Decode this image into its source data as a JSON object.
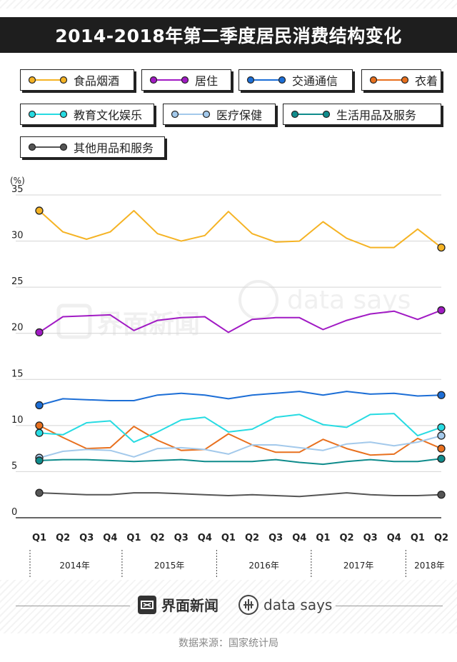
{
  "title": "2014-2018年第二季度居民消费结构变化",
  "chart_data": {
    "type": "line",
    "title": "2014-2018年第二季度居民消费结构变化",
    "ylabel": "(%)",
    "ylim": [
      0,
      35
    ],
    "yticks": [
      0,
      5,
      10,
      15,
      20,
      25,
      30,
      35
    ],
    "grid": true,
    "categories": [
      "Q1",
      "Q2",
      "Q3",
      "Q4",
      "Q1",
      "Q2",
      "Q3",
      "Q4",
      "Q1",
      "Q2",
      "Q3",
      "Q4",
      "Q1",
      "Q2",
      "Q3",
      "Q4",
      "Q1",
      "Q2"
    ],
    "years": [
      "2014年",
      "2015年",
      "2016年",
      "2017年",
      "2018年"
    ],
    "series": [
      {
        "name": "食品烟酒",
        "color": "#f5b324",
        "values": [
          33.3,
          31.0,
          30.2,
          31.0,
          33.3,
          30.8,
          30.0,
          30.6,
          33.2,
          30.8,
          29.9,
          30.0,
          32.1,
          30.3,
          29.3,
          29.3,
          31.3,
          29.3
        ]
      },
      {
        "name": "居住",
        "color": "#a11ac4",
        "values": [
          20.1,
          21.8,
          21.9,
          22.0,
          20.3,
          21.4,
          21.7,
          21.8,
          20.1,
          21.5,
          21.7,
          21.7,
          20.4,
          21.4,
          22.1,
          22.4,
          21.5,
          22.5
        ]
      },
      {
        "name": "交通通信",
        "color": "#1c6ed6",
        "values": [
          12.2,
          12.9,
          12.8,
          12.7,
          12.7,
          13.3,
          13.5,
          13.3,
          12.9,
          13.3,
          13.5,
          13.7,
          13.3,
          13.7,
          13.4,
          13.5,
          13.2,
          13.3
        ]
      },
      {
        "name": "衣着",
        "color": "#e8701e",
        "values": [
          10.0,
          8.7,
          7.5,
          7.6,
          9.9,
          8.4,
          7.3,
          7.4,
          9.1,
          7.9,
          7.1,
          7.1,
          8.5,
          7.5,
          6.8,
          6.9,
          8.6,
          7.5
        ]
      },
      {
        "name": "教育文化娱乐",
        "color": "#27dbe2",
        "values": [
          9.2,
          9.0,
          10.3,
          10.5,
          8.2,
          9.3,
          10.6,
          10.9,
          9.3,
          9.6,
          10.9,
          11.2,
          10.1,
          9.8,
          11.2,
          11.3,
          8.9,
          9.8
        ]
      },
      {
        "name": "医疗保健",
        "color": "#a3c9eb",
        "values": [
          6.5,
          7.2,
          7.4,
          7.3,
          6.6,
          7.5,
          7.6,
          7.4,
          6.9,
          7.9,
          7.9,
          7.6,
          7.3,
          8.0,
          8.2,
          7.8,
          8.2,
          8.9
        ]
      },
      {
        "name": "生活用品及服务",
        "color": "#0f8c8c",
        "values": [
          6.2,
          6.3,
          6.3,
          6.2,
          6.1,
          6.2,
          6.3,
          6.1,
          6.1,
          6.1,
          6.3,
          6.0,
          5.8,
          6.1,
          6.3,
          6.1,
          6.1,
          6.4
        ]
      },
      {
        "name": "其他用品和服务",
        "color": "#555555",
        "values": [
          2.7,
          2.6,
          2.5,
          2.5,
          2.7,
          2.7,
          2.6,
          2.5,
          2.4,
          2.5,
          2.4,
          2.3,
          2.5,
          2.7,
          2.5,
          2.4,
          2.4,
          2.5
        ]
      }
    ],
    "highlighted_points": [
      0,
      17
    ],
    "watermark": {
      "brand": "界面新闻",
      "tagline": "data says"
    }
  },
  "footer": {
    "brand": "界面新闻",
    "tagline": "data says",
    "source": "数据来源：国家统计局"
  }
}
